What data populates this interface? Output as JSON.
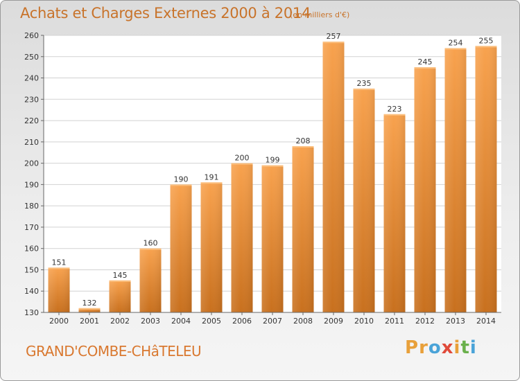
{
  "chart_data": {
    "type": "bar",
    "title": "Achats et Charges Externes 2000 à 2014",
    "subtitle": "(en milliers d'€)",
    "categories": [
      "2000",
      "2001",
      "2002",
      "2003",
      "2004",
      "2005",
      "2006",
      "2007",
      "2008",
      "2009",
      "2010",
      "2011",
      "2012",
      "2013",
      "2014"
    ],
    "values": [
      151,
      132,
      145,
      160,
      190,
      191,
      200,
      199,
      208,
      257,
      235,
      223,
      245,
      254,
      255
    ],
    "ylim": [
      130,
      260
    ],
    "yticks": [
      130,
      140,
      150,
      160,
      170,
      180,
      190,
      200,
      210,
      220,
      230,
      240,
      250,
      260
    ],
    "grid": true,
    "bar_color": "#f0953a"
  },
  "footer": {
    "commune": "GRAND'COMBE-CHâTELEU",
    "brand": "Proxiti"
  }
}
